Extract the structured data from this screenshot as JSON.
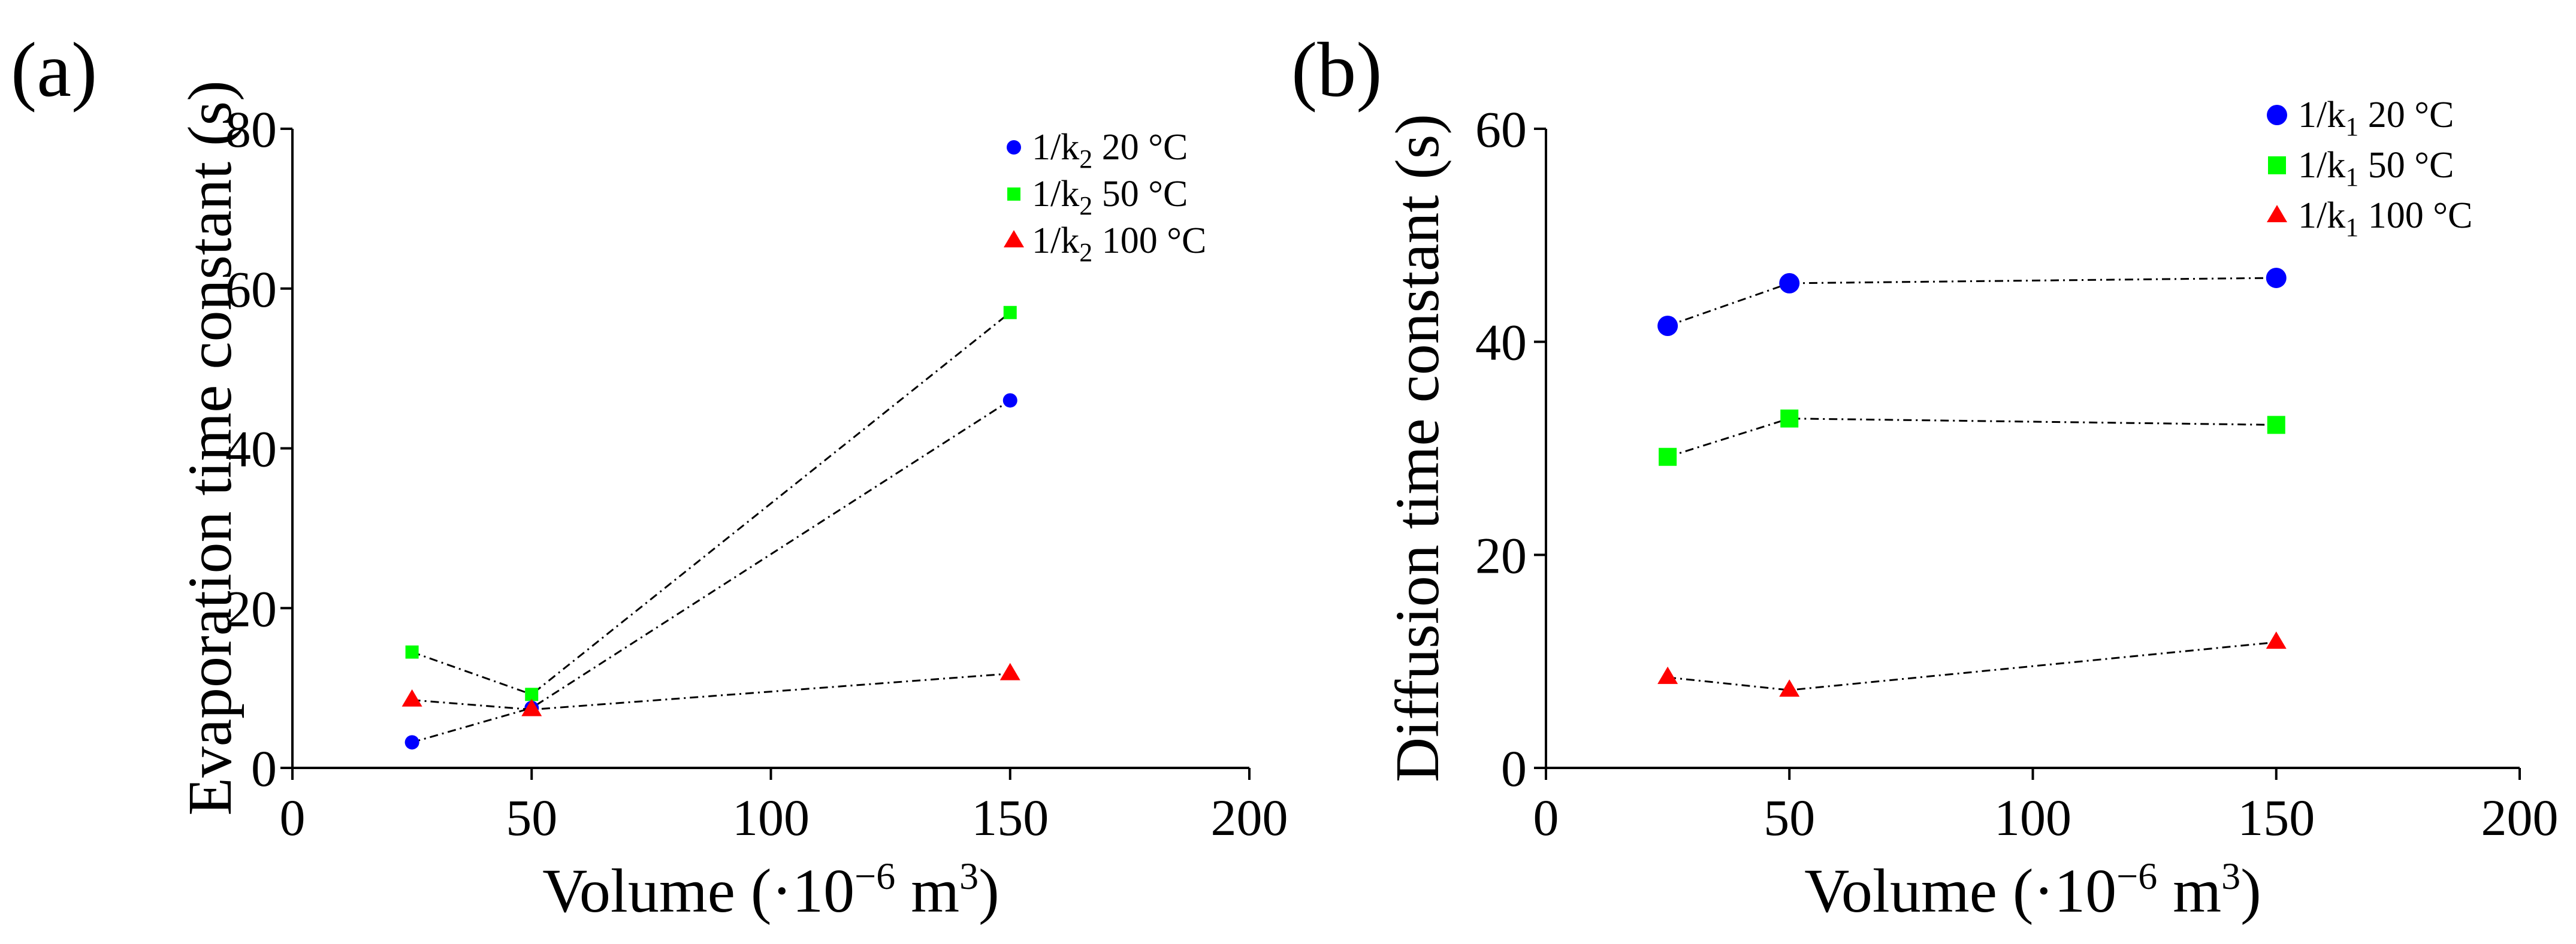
{
  "chart_data": [
    {
      "panel_label": "(a)",
      "type": "line",
      "title": "",
      "xlabel": "Volume (·10",
      "xlabel_exp": "−6",
      "xlabel_unit": " m",
      "xlabel_unit_exp": "3",
      "xlabel_close": ")",
      "ylabel": "Evaporation time constant (s)",
      "xlim": [
        0,
        200
      ],
      "ylim": [
        0,
        80
      ],
      "xticks": [
        0,
        50,
        100,
        150,
        200
      ],
      "yticks": [
        0,
        20,
        40,
        60,
        80
      ],
      "xtick_labels": [
        "0",
        "50",
        "100",
        "150",
        "200"
      ],
      "ytick_labels": [
        "0",
        "20",
        "40",
        "60",
        "80"
      ],
      "legend_position": "top-right",
      "series": [
        {
          "name": "1/k",
          "sub": "2",
          "temp": " 20 °C",
          "color": "#0000ff",
          "marker": "circle",
          "x": [
            25,
            50,
            150
          ],
          "y": [
            3.2,
            7.5,
            46
          ]
        },
        {
          "name": "1/k",
          "sub": "2",
          "temp": " 50 °C",
          "color": "#00ff00",
          "marker": "square",
          "x": [
            25,
            50,
            150
          ],
          "y": [
            14.5,
            9.2,
            57
          ]
        },
        {
          "name": "1/k",
          "sub": "2",
          "temp": " 100 °C",
          "color": "#ff0000",
          "marker": "triangle",
          "x": [
            25,
            50,
            150
          ],
          "y": [
            8.5,
            7.3,
            11.8
          ]
        }
      ]
    },
    {
      "panel_label": "(b)",
      "type": "line",
      "title": "",
      "xlabel": "Volume (·10",
      "xlabel_exp": "−6",
      "xlabel_unit": " m",
      "xlabel_unit_exp": "3",
      "xlabel_close": ")",
      "ylabel": "Diffusion time constant (s)",
      "xlim": [
        0,
        200
      ],
      "ylim": [
        0,
        60
      ],
      "xticks": [
        0,
        50,
        100,
        150,
        200
      ],
      "yticks": [
        0,
        20,
        40,
        60
      ],
      "xtick_labels": [
        "0",
        "50",
        "100",
        "150",
        "200"
      ],
      "ytick_labels": [
        "0",
        "20",
        "40",
        "60"
      ],
      "legend_position": "top-right",
      "series": [
        {
          "name": "1/k",
          "sub": "1",
          "temp": " 20 °C",
          "color": "#0000ff",
          "marker": "circle",
          "x": [
            25,
            50,
            150
          ],
          "y": [
            41.5,
            45.5,
            46
          ]
        },
        {
          "name": "1/k",
          "sub": "1",
          "temp": " 50 °C",
          "color": "#00ff00",
          "marker": "square",
          "x": [
            25,
            50,
            150
          ],
          "y": [
            29.2,
            32.8,
            32.2
          ]
        },
        {
          "name": "1/k",
          "sub": "1",
          "temp": " 100 °C",
          "color": "#ff0000",
          "marker": "triangle",
          "x": [
            25,
            50,
            150
          ],
          "y": [
            8.5,
            7.3,
            11.8
          ]
        }
      ]
    }
  ]
}
